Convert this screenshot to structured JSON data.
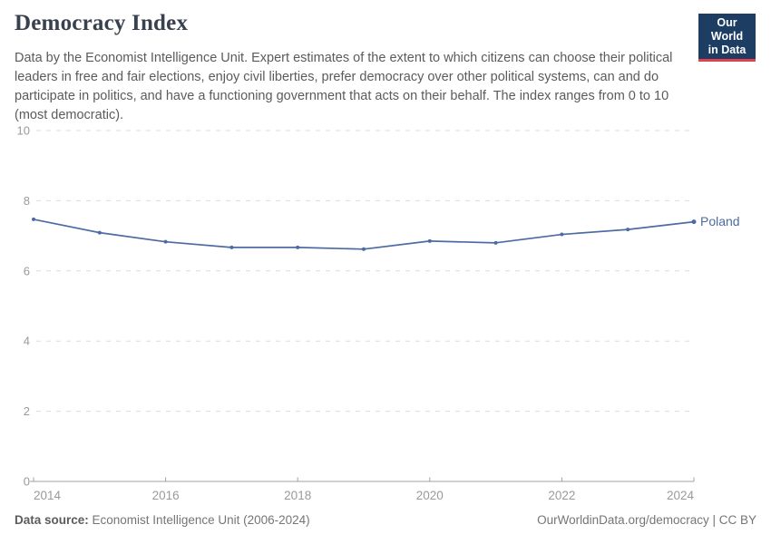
{
  "header": {
    "title": "Democracy Index",
    "subtitle": "Data by the Economist Intelligence Unit. Expert estimates of the extent to which citizens can choose their political leaders in free and fair elections, enjoy civil liberties, prefer democracy over other political systems, can and do participate in politics, and have a functioning government that acts on their behalf. The index ranges from 0 to 10 (most democratic).",
    "logo": {
      "line1": "Our World",
      "line2": "in Data"
    }
  },
  "chart_data": {
    "type": "line",
    "title": "Democracy Index",
    "x": [
      2014,
      2015,
      2016,
      2017,
      2018,
      2019,
      2020,
      2021,
      2022,
      2023,
      2024
    ],
    "series": [
      {
        "name": "Poland",
        "color": "#4c6ba3",
        "values": [
          7.47,
          7.09,
          6.83,
          6.67,
          6.67,
          6.62,
          6.85,
          6.8,
          7.04,
          7.18,
          7.4
        ]
      }
    ],
    "xlim": [
      2014,
      2024
    ],
    "ylim": [
      0,
      10
    ],
    "x_ticks": [
      2014,
      2016,
      2018,
      2020,
      2022,
      2024
    ],
    "y_ticks": [
      0,
      2,
      4,
      6,
      8,
      10
    ],
    "grid": "horizontal-dashed",
    "legend_position": "end-of-line-label"
  },
  "footer": {
    "source_label": "Data source:",
    "source_value": " Economist Intelligence Unit (2006-2024)",
    "rights": "OurWorldinData.org/democracy | CC BY"
  },
  "colors": {
    "series_blue": "#4c6ba3",
    "logo_navy": "#1d3d63",
    "logo_red": "#e0434e",
    "axis_text": "#9a9a9a",
    "grid_line": "#dcdcdc",
    "axis_line": "#a1a1a1"
  }
}
